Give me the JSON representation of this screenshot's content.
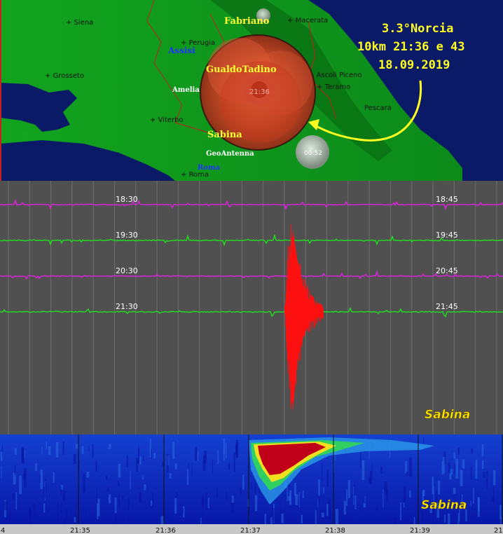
{
  "map": {
    "cities": [
      {
        "name": "Siena",
        "key": "siena"
      },
      {
        "name": "Perugia",
        "key": "perugia"
      },
      {
        "name": "Grosseto",
        "key": "grosseto"
      },
      {
        "name": "Viterbo",
        "key": "viterbo"
      },
      {
        "name": "Roma",
        "key": "roma"
      },
      {
        "name": "Macerata",
        "key": "macerata"
      },
      {
        "name": "Ascoli Piceno",
        "key": "ascoli"
      },
      {
        "name": "Teramo",
        "key": "teramo"
      },
      {
        "name": "Pescara",
        "key": "pescara"
      }
    ],
    "stations": {
      "fabriano": "Fabriano",
      "assisi": "Assisi",
      "gualdo": "GualdoTadino",
      "amelia": "Amelia",
      "sabina": "Sabina",
      "geoantenna": "GeoAntenna",
      "roma_station": "Roma"
    },
    "event_time_label": "21:36",
    "old_event_label": "00:52",
    "info": {
      "line1": "3.3°Norcia",
      "line2": "10km 21:36 e 43",
      "line3": "18.09.2019"
    }
  },
  "seismogram": {
    "station": "Sabina",
    "traces": [
      {
        "left": "18:30",
        "right": "18:45",
        "color": "#e020e0"
      },
      {
        "left": "19:30",
        "right": "19:45",
        "color": "#20e020"
      },
      {
        "left": "20:30",
        "right": "20:45",
        "color": "#e020e0"
      },
      {
        "left": "21:30",
        "right": "21:45",
        "color": "#20e020"
      }
    ],
    "event_color": "#ff1010"
  },
  "spectrogram": {
    "station": "Sabina",
    "ticks": [
      "21:35",
      "21:36",
      "21:37",
      "21:38",
      "21:39"
    ],
    "edge_left": "4",
    "edge_right": "21:"
  }
}
